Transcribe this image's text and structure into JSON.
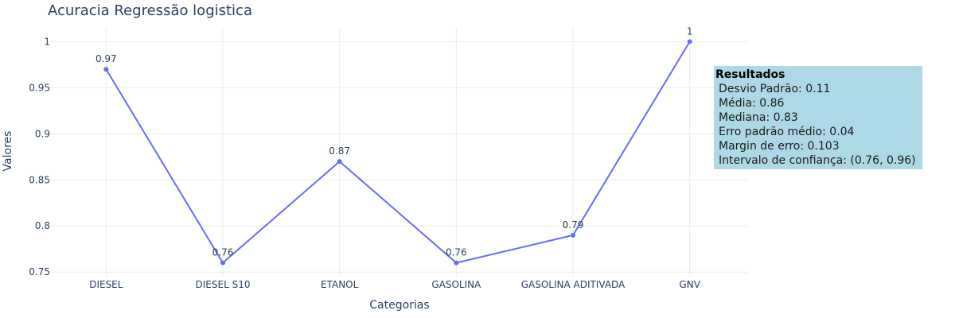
{
  "chart_data": {
    "type": "line",
    "title": "Acuracia Regressão logistica",
    "xlabel": "Categorias",
    "ylabel": "Valores",
    "categories": [
      "DIESEL",
      "DIESEL S10",
      "ETANOL",
      "GASOLINA",
      "GASOLINA ADITIVADA",
      "GNV"
    ],
    "series": [
      {
        "values": [
          0.97,
          0.76,
          0.87,
          0.76,
          0.79,
          1
        ],
        "color": "#636efa"
      }
    ],
    "data_labels": [
      "0.97",
      "0.76",
      "0.87",
      "0.76",
      "0.79",
      "1"
    ],
    "ylim": [
      0.745,
      1.015
    ],
    "yticks": [
      0.75,
      0.8,
      0.85,
      0.9,
      0.95,
      1
    ],
    "ytick_labels": [
      "0.75",
      "0.8",
      "0.85",
      "0.9",
      "0.95",
      "1"
    ],
    "grid": true,
    "legend": "none"
  },
  "annotation": {
    "title": "Resultados",
    "lines": [
      "Desvio Padrão: 0.11",
      "Média: 0.86",
      "Mediana: 0.83",
      "Erro padrão médio: 0.04",
      "Margin de erro: 0.103",
      "Intervalo de confiança: (0.76, 0.96)"
    ],
    "background": "#add8e6"
  }
}
